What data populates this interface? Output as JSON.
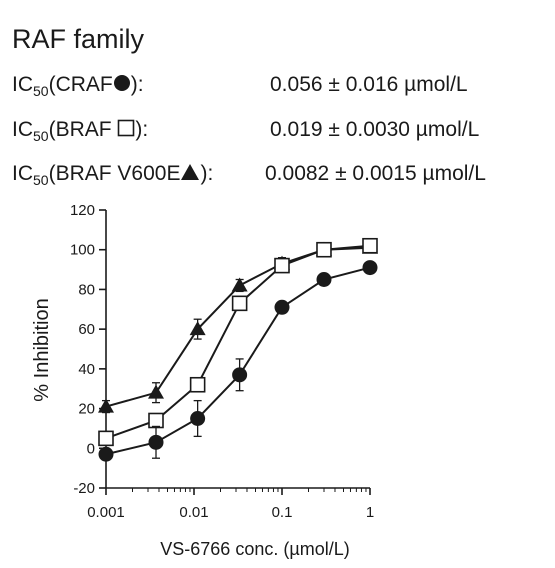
{
  "header": {
    "title": "RAF family",
    "ic_prefix": "IC",
    "ic_sub": "50",
    "rows": [
      {
        "label_start": "(CRAF",
        "symbol": "filled-circle",
        "label_end": "):",
        "value": "0.056 ± 0.016 µmol/L"
      },
      {
        "label_start": "(BRAF ",
        "symbol": "open-square",
        "label_end": "):",
        "value": "0.019 ± 0.0030 µmol/L"
      },
      {
        "label_start": "(BRAF V600E",
        "symbol": "filled-triangle",
        "label_end": "):",
        "value": "0.0082 ± 0.0015 µmol/L"
      }
    ]
  },
  "chart_data": {
    "type": "line",
    "xlabel": "VS-6766  conc. (µmol/L)",
    "ylabel": "% Inhibition",
    "xscale": "log",
    "xlim": [
      0.001,
      1
    ],
    "ylim": [
      -20,
      120
    ],
    "xticks": [
      0.001,
      0.01,
      0.1,
      1
    ],
    "xtick_labels": [
      "0.001",
      "0.01",
      "0.1",
      "1"
    ],
    "yticks": [
      -20,
      0,
      20,
      40,
      60,
      80,
      100,
      120
    ],
    "ytick_labels": [
      "-20",
      "0",
      "20",
      "40",
      "60",
      "80",
      "100",
      "120"
    ],
    "grid": false,
    "series": [
      {
        "name": "BRAF V600E",
        "marker": "filled-triangle",
        "x": [
          0.001,
          0.0037,
          0.011,
          0.033,
          0.1,
          0.3,
          1
        ],
        "y": [
          21,
          28,
          60,
          82,
          93,
          100,
          101
        ],
        "err": [
          3,
          5,
          5,
          3,
          3,
          2,
          2
        ]
      },
      {
        "name": "BRAF",
        "marker": "open-square",
        "x": [
          0.001,
          0.0037,
          0.011,
          0.033,
          0.1,
          0.3,
          1
        ],
        "y": [
          5,
          14,
          32,
          73,
          92,
          100,
          102
        ],
        "err": [
          2,
          3,
          3,
          3,
          2,
          2,
          2
        ]
      },
      {
        "name": "CRAF",
        "marker": "filled-circle",
        "x": [
          0.001,
          0.0037,
          0.011,
          0.033,
          0.1,
          0.3,
          1
        ],
        "y": [
          -3,
          3,
          15,
          37,
          71,
          85,
          91
        ],
        "err": [
          2,
          8,
          9,
          8,
          2,
          2,
          2
        ]
      }
    ]
  }
}
